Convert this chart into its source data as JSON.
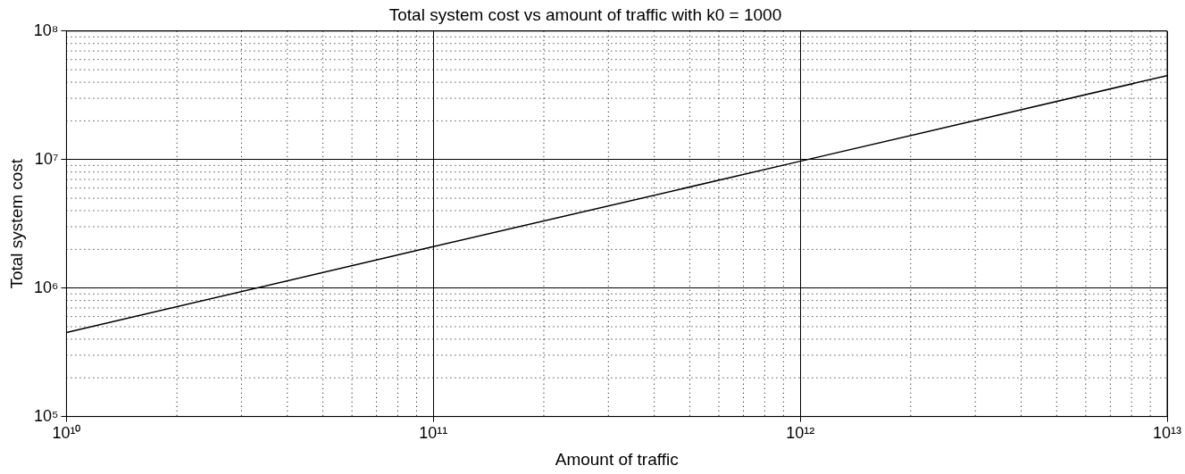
{
  "chart_data": {
    "type": "line",
    "title": "Total system cost vs amount of traffic with k0 = 1000",
    "xlabel": "Amount of traffic",
    "ylabel": "Total system cost",
    "x": [
      10000000000,
      100000000000,
      1000000000000,
      10000000000000
    ],
    "series": [
      {
        "color": "#000000",
        "values": [
          450000,
          2100000,
          9700000,
          45000000
        ]
      }
    ],
    "log": "xy",
    "grid": true,
    "legend": false,
    "marker": "none",
    "line_style": "solid",
    "xlim": [
      10000000000,
      10000000000000
    ],
    "xticks": [
      {
        "value": 10000000000,
        "label": "10¹⁰"
      },
      {
        "value": 100000000000,
        "label": "10¹¹"
      },
      {
        "value": 1000000000000,
        "label": "10¹²"
      },
      {
        "value": 10000000000000,
        "label": "10¹³"
      }
    ],
    "ylim": [
      100000,
      100000000
    ],
    "yticks": [
      {
        "value": 100000,
        "label": "10⁵"
      },
      {
        "value": 1000000,
        "label": "10⁶"
      },
      {
        "value": 10000000,
        "label": "10⁷"
      },
      {
        "value": 100000000,
        "label": "10⁸"
      }
    ]
  }
}
